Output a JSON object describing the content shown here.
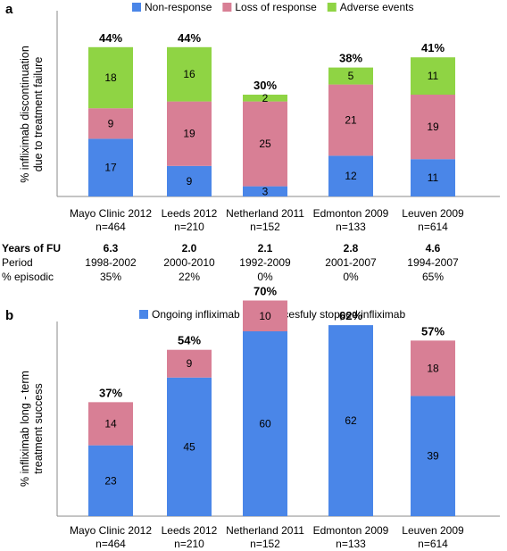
{
  "chart_data": [
    {
      "type": "bar",
      "stacked": true,
      "panel_label": "a",
      "ylabel": [
        "% infliximab discontinuation",
        "due to treatment failure"
      ],
      "categories": [
        {
          "name": "Mayo Clinic 2012",
          "n": "n=464"
        },
        {
          "name": "Leeds 2012",
          "n": "n=210"
        },
        {
          "name": "Netherland 2011",
          "n": "n=152"
        },
        {
          "name": "Edmonton 2009",
          "n": "n=133"
        },
        {
          "name": "Leuven 2009",
          "n": "n=614"
        }
      ],
      "series": [
        {
          "name": "Non-response",
          "color": "#4a86e8",
          "values": [
            17,
            9,
            3,
            12,
            11
          ]
        },
        {
          "name": "Loss of response",
          "color": "#d87f95",
          "values": [
            9,
            19,
            25,
            21,
            19
          ]
        },
        {
          "name": "Adverse events",
          "color": "#8fd444",
          "values": [
            18,
            16,
            2,
            5,
            11
          ]
        }
      ],
      "totals": [
        "44%",
        "44%",
        "30%",
        "38%",
        "41%"
      ],
      "legend_position": "top",
      "grid": false,
      "table": {
        "rows": [
          {
            "label": "Years of FU",
            "bold": true,
            "values": [
              "6.3",
              "2.0",
              "2.1",
              "2.8",
              "4.6"
            ]
          },
          {
            "label": "Period",
            "bold": false,
            "values": [
              "1998-2002",
              "2000-2010",
              "1992-2009",
              "2001-2007",
              "1994-2007"
            ]
          },
          {
            "label": "% episodic",
            "bold": false,
            "values": [
              "35%",
              "22%",
              "0%",
              "0%",
              "65%"
            ]
          }
        ]
      }
    },
    {
      "type": "bar",
      "stacked": true,
      "panel_label": "b",
      "ylabel": [
        "% infliximab long - term",
        "treatment success"
      ],
      "categories": [
        {
          "name": "Mayo Clinic 2012",
          "n": "n=464"
        },
        {
          "name": "Leeds 2012",
          "n": "n=210"
        },
        {
          "name": "Netherland 2011",
          "n": "n=152"
        },
        {
          "name": "Edmonton 2009",
          "n": "n=133"
        },
        {
          "name": "Leuven 2009",
          "n": "n=614"
        }
      ],
      "series": [
        {
          "name": "Ongoing infliximab",
          "color": "#4a86e8",
          "values": [
            23,
            45,
            60,
            62,
            39
          ]
        },
        {
          "name": "Succesfuly stopped infliximab",
          "color": "#d87f95",
          "values": [
            14,
            9,
            10,
            0,
            18
          ]
        }
      ],
      "totals": [
        "37%",
        "54%",
        "70%",
        "62%",
        "57%"
      ],
      "legend_position": "top",
      "grid": false
    }
  ]
}
